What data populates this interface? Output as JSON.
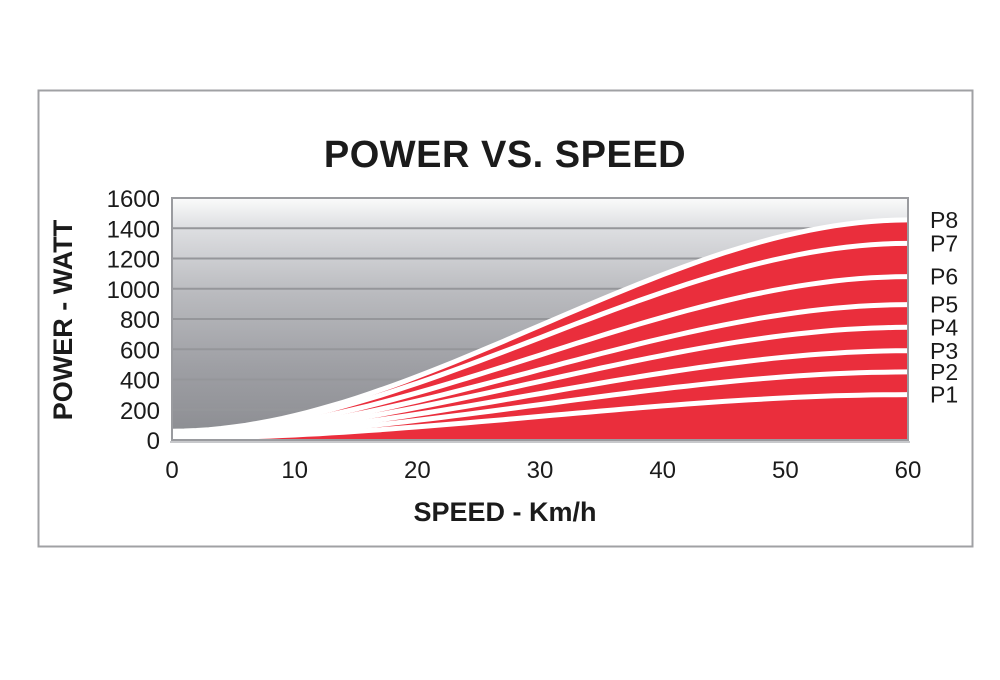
{
  "chart_data": {
    "type": "area",
    "title": "POWER VS. SPEED",
    "xlabel": "SPEED - Km/h",
    "ylabel": "POWER - WATT",
    "xlim": [
      0,
      60
    ],
    "ylim": [
      0,
      1600
    ],
    "x_ticks": [
      0,
      10,
      20,
      30,
      40,
      50,
      60
    ],
    "y_ticks": [
      0,
      200,
      400,
      600,
      800,
      1000,
      1200,
      1400,
      1600
    ],
    "grid": true,
    "legend_position": "right",
    "x": [
      0,
      5,
      10,
      15,
      20,
      25,
      30,
      35,
      40,
      45,
      50,
      55,
      60
    ],
    "series": [
      {
        "name": "P1",
        "end": 300,
        "values": [
          12,
          18,
          33,
          57,
          87,
          120,
          156,
          192,
          225,
          255,
          279,
          294,
          300
        ]
      },
      {
        "name": "P2",
        "end": 450,
        "values": [
          18,
          27,
          50,
          86,
          130,
          180,
          234,
          287,
          338,
          383,
          418,
          442,
          450
        ]
      },
      {
        "name": "P3",
        "end": 590,
        "values": [
          24,
          35,
          66,
          112,
          170,
          237,
          307,
          377,
          443,
          502,
          548,
          579,
          590
        ]
      },
      {
        "name": "P4",
        "end": 745,
        "values": [
          30,
          44,
          83,
          142,
          215,
          299,
          387,
          476,
          560,
          633,
          692,
          731,
          745
        ]
      },
      {
        "name": "P5",
        "end": 895,
        "values": [
          36,
          53,
          99,
          170,
          259,
          359,
          465,
          572,
          672,
          761,
          831,
          878,
          895
        ]
      },
      {
        "name": "P6",
        "end": 1080,
        "values": [
          43,
          64,
          120,
          205,
          312,
          433,
          562,
          690,
          811,
          918,
          1003,
          1060,
          1080
        ]
      },
      {
        "name": "P7",
        "end": 1300,
        "values": [
          52,
          77,
          144,
          247,
          376,
          521,
          676,
          831,
          977,
          1105,
          1208,
          1276,
          1300
        ]
      },
      {
        "name": "P8",
        "end": 1455,
        "values": [
          58,
          86,
          162,
          276,
          420,
          584,
          757,
          930,
          1093,
          1237,
          1352,
          1428,
          1455
        ]
      }
    ],
    "colors": {
      "band_fill": "#ea2e3c",
      "separator": "#ffffff",
      "plot_bg_top": "#fbfbfb",
      "plot_bg_bottom": "#8b8c91",
      "gridline": "#95969a",
      "plot_border": "#9a9b9f",
      "axis_line": "#c7c8cb",
      "frame_border": "#a0a1a4",
      "text": "#1b1b1b",
      "page_bg": "#ffffff"
    }
  }
}
